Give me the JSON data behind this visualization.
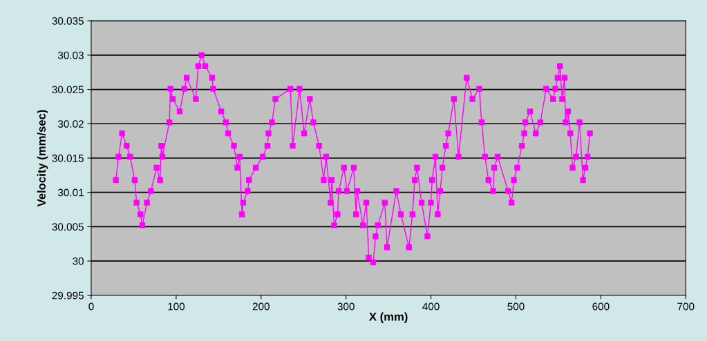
{
  "chart_data": {
    "type": "line",
    "xlabel": "X (mm)",
    "ylabel": "Velocity (mm/sec)",
    "xlim": [
      0,
      700
    ],
    "xticks": [
      0,
      100,
      200,
      300,
      400,
      500,
      600,
      700
    ],
    "ylim": [
      29.995,
      30.035
    ],
    "yticks": [
      29.995,
      30,
      30.005,
      30.01,
      30.015,
      30.02,
      30.025,
      30.03,
      30.035
    ],
    "grid": "y",
    "marker": "square",
    "line_style": "solid",
    "series": [
      {
        "color": "#ff00ff",
        "x": [
          29.0,
          32.2,
          36.3,
          41.7,
          45.8,
          51.2,
          53.4,
          58.0,
          60.2,
          65.6,
          70.3,
          77.0,
          81.1,
          82.5,
          83.8,
          92.0,
          93.3,
          96.0,
          104.2,
          109.6,
          112.4,
          123.2,
          126.0,
          130.1,
          134.1,
          142.3,
          143.6,
          153.1,
          158.5,
          161.2,
          168.0,
          172.1,
          174.8,
          177.5,
          178.9,
          184.3,
          185.7,
          193.8,
          201.9,
          207.4,
          208.7,
          212.8,
          216.9,
          234.5,
          237.2,
          245.3,
          250.7,
          257.4,
          261.5,
          268.3,
          273.7,
          276.5,
          281.9,
          283.2,
          286.0,
          290.0,
          291.4,
          297.6,
          301.0,
          309.1,
          311.8,
          313.1,
          319.9,
          323.9,
          326.7,
          332.1,
          334.8,
          337.5,
          345.6,
          348.3,
          359.2,
          364.6,
          374.1,
          378.2,
          380.9,
          383.6,
          389.0,
          395.8,
          399.9,
          401.3,
          405.3,
          408.0,
          410.8,
          413.5,
          417.5,
          420.3,
          427.0,
          432.5,
          442.0,
          448.8,
          456.9,
          459.6,
          463.6,
          467.7,
          473.2,
          474.5,
          478.5,
          490.8,
          494.9,
          497.6,
          501.6,
          507.1,
          509.8,
          511.1,
          516.6,
          523.4,
          528.8,
          535.6,
          543.7,
          546.4,
          549.1,
          551.8,
          554.5,
          557.2,
          558.6,
          561.3,
          564.0,
          566.7,
          570.8,
          574.9,
          579.0,
          581.7,
          584.4,
          587.1
        ],
        "values": [
          30.0118,
          30.0152,
          30.0186,
          30.0168,
          30.0152,
          30.0118,
          30.0085,
          30.0068,
          30.0052,
          30.0085,
          30.0102,
          30.0136,
          30.0118,
          30.0168,
          30.0152,
          30.0202,
          30.0251,
          30.0236,
          30.0218,
          30.0251,
          30.0267,
          30.0236,
          30.0284,
          30.03,
          30.0284,
          30.0267,
          30.0251,
          30.0218,
          30.0202,
          30.0186,
          30.0168,
          30.0136,
          30.0152,
          30.0068,
          30.0085,
          30.0102,
          30.0118,
          30.0136,
          30.0152,
          30.0168,
          30.0186,
          30.0202,
          30.0236,
          30.0251,
          30.0168,
          30.0251,
          30.0186,
          30.0236,
          30.0202,
          30.0168,
          30.0118,
          30.0152,
          30.0085,
          30.0118,
          30.0052,
          30.0068,
          30.0102,
          30.0136,
          30.0102,
          30.0136,
          30.0068,
          30.0102,
          30.0052,
          30.0085,
          30.0005,
          29.9998,
          30.0036,
          30.0052,
          30.0085,
          30.002,
          30.0102,
          30.0068,
          30.002,
          30.0068,
          30.0118,
          30.0136,
          30.0085,
          30.0036,
          30.0085,
          30.0118,
          30.0152,
          30.0068,
          30.0102,
          30.0136,
          30.0168,
          30.0186,
          30.0236,
          30.0152,
          30.0267,
          30.0236,
          30.0251,
          30.0202,
          30.0152,
          30.0118,
          30.0102,
          30.0136,
          30.0152,
          30.0102,
          30.0085,
          30.0118,
          30.0136,
          30.0168,
          30.0186,
          30.0202,
          30.0218,
          30.0186,
          30.0202,
          30.0251,
          30.0236,
          30.0251,
          30.0267,
          30.0284,
          30.0236,
          30.0267,
          30.0202,
          30.0218,
          30.0186,
          30.0136,
          30.0152,
          30.0202,
          30.0118,
          30.0136,
          30.0152,
          30.0186
        ]
      }
    ]
  }
}
